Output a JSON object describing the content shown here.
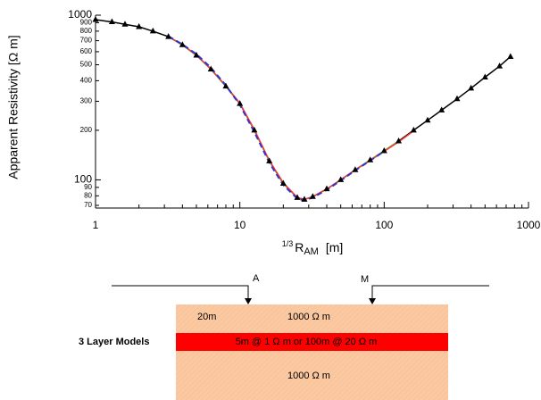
{
  "chart_data": {
    "type": "line",
    "log_x": true,
    "log_y": true,
    "ylabel": "Apparent Resistivity [Ω m]",
    "xlabel": [
      "1/3",
      "R",
      "AM",
      "[m]"
    ],
    "xlim": [
      1,
      1000
    ],
    "ylim": [
      70,
      1000
    ],
    "xticks": [
      1,
      10,
      100,
      1000
    ],
    "xminorticks": [
      2,
      3,
      4,
      5,
      6,
      7,
      8,
      9,
      20,
      30,
      40,
      50,
      60,
      70,
      80,
      90,
      200,
      300,
      400,
      500,
      600,
      700,
      800,
      900
    ],
    "yticks": [
      70,
      80,
      90,
      100,
      200,
      300,
      400,
      500,
      600,
      700,
      800,
      900,
      1000
    ],
    "x": [
      1,
      1.3,
      1.6,
      2,
      2.5,
      3.2,
      4,
      5,
      6.3,
      8,
      10,
      12.6,
      16,
      20,
      25,
      28,
      32,
      40,
      50,
      63,
      80,
      100,
      126,
      160,
      200,
      250,
      320,
      400,
      500,
      630,
      750
    ],
    "series": [
      {
        "color": "#000000",
        "marker": "triangle",
        "dashed": false,
        "values": [
          940,
          910,
          880,
          850,
          800,
          740,
          660,
          570,
          470,
          370,
          290,
          200,
          130,
          95,
          78,
          76,
          79,
          88,
          100,
          115,
          132,
          150,
          172,
          200,
          230,
          265,
          310,
          360,
          420,
          490,
          560
        ]
      },
      {
        "color": "#33cc33",
        "marker": "none",
        "dashed": false,
        "values": [
          null,
          null,
          null,
          null,
          null,
          740,
          660,
          570,
          470,
          370,
          290,
          200,
          130,
          95,
          78,
          76,
          79,
          88,
          100,
          115,
          132,
          150,
          172,
          null,
          null,
          null,
          null,
          null,
          null,
          null,
          null
        ]
      },
      {
        "color": "#ff3333",
        "marker": "none",
        "dashed": false,
        "values": [
          null,
          null,
          null,
          null,
          null,
          742,
          662,
          572,
          472,
          372,
          292,
          202,
          131,
          96,
          78,
          76,
          79,
          88,
          100,
          115,
          131,
          149,
          170,
          198,
          null,
          null,
          null,
          null,
          null,
          null,
          null
        ]
      },
      {
        "color": "#3333cc",
        "marker": "none",
        "dashed": true,
        "values": [
          null,
          null,
          null,
          null,
          null,
          745,
          665,
          580,
          480,
          375,
          285,
          195,
          127,
          93,
          77,
          75,
          78,
          87,
          99,
          114,
          131,
          149,
          null,
          null,
          null,
          null,
          null,
          null,
          null,
          null,
          null
        ]
      }
    ]
  },
  "diagram": {
    "electrode_a": "A",
    "electrode_m": "M",
    "caption": "3 Layer Models",
    "layer1_thickness": "20m",
    "layer1_resistivity": "1000 Ω m",
    "layer2": "5m @ 1 Ω m  or  100m @ 20 Ω m",
    "layer3_resistivity": "1000 Ω m"
  }
}
